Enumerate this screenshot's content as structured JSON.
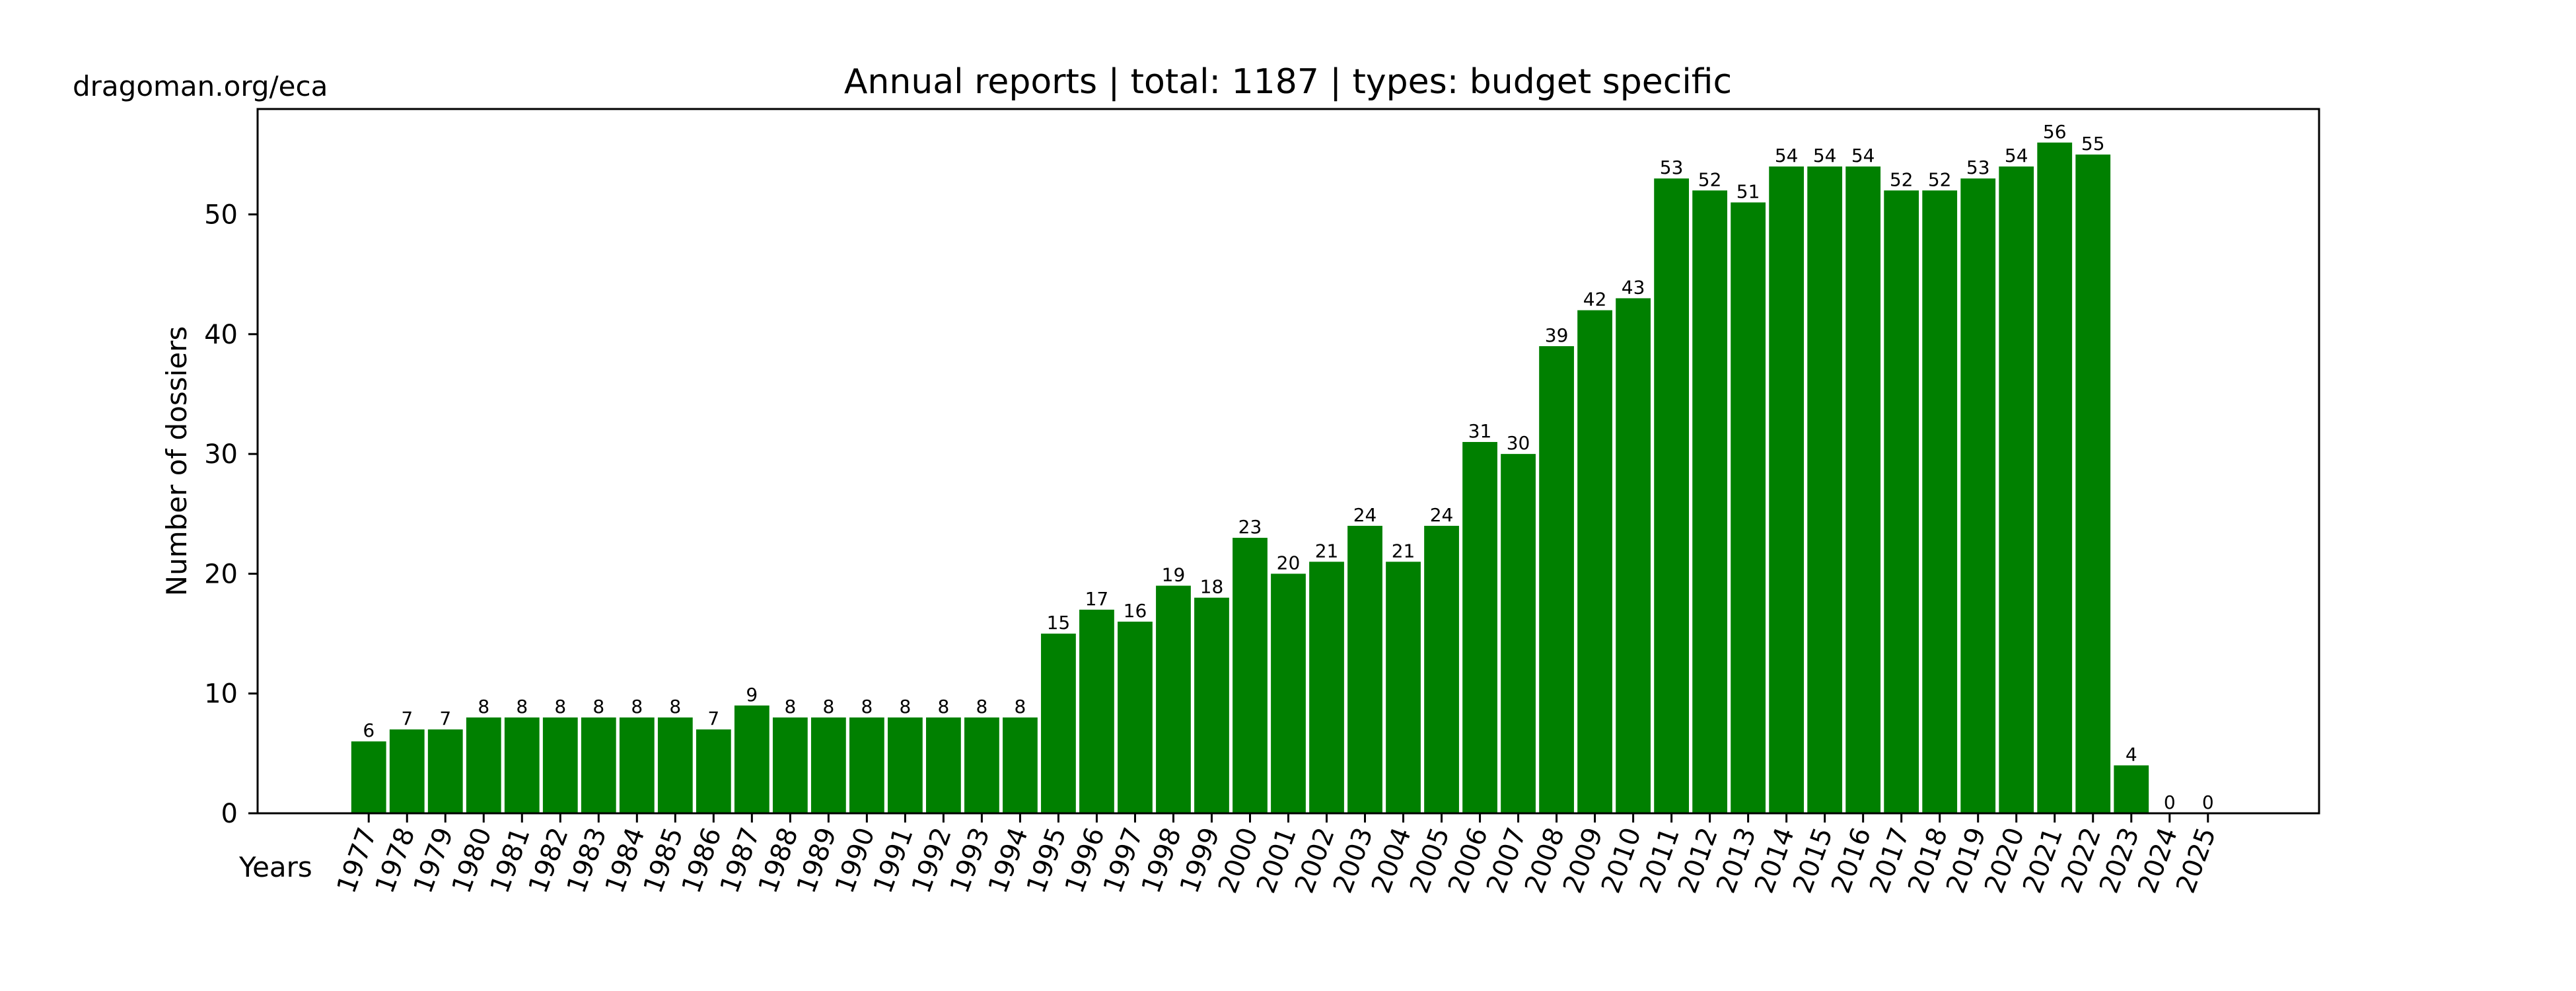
{
  "watermark": "dragoman.org/eca",
  "chart_data": {
    "type": "bar",
    "title": "Annual reports | total: 1187 | types: budget specific",
    "xlabel": "Years",
    "ylabel": "Number of dossiers",
    "categories": [
      "1977",
      "1978",
      "1979",
      "1980",
      "1981",
      "1982",
      "1983",
      "1984",
      "1985",
      "1986",
      "1987",
      "1988",
      "1989",
      "1990",
      "1991",
      "1992",
      "1993",
      "1994",
      "1995",
      "1996",
      "1997",
      "1998",
      "1999",
      "2000",
      "2001",
      "2002",
      "2003",
      "2004",
      "2005",
      "2006",
      "2007",
      "2008",
      "2009",
      "2010",
      "2011",
      "2012",
      "2013",
      "2014",
      "2015",
      "2016",
      "2017",
      "2018",
      "2019",
      "2020",
      "2021",
      "2022",
      "2023",
      "2024",
      "2025"
    ],
    "values": [
      6,
      7,
      7,
      8,
      8,
      8,
      8,
      8,
      8,
      7,
      9,
      8,
      8,
      8,
      8,
      8,
      8,
      8,
      15,
      17,
      16,
      19,
      18,
      23,
      20,
      21,
      24,
      21,
      24,
      31,
      30,
      39,
      42,
      43,
      53,
      52,
      51,
      54,
      54,
      54,
      52,
      52,
      53,
      54,
      56,
      55,
      4,
      0,
      0
    ],
    "data_labels": [
      "6",
      "7",
      "7",
      "8",
      "8",
      "8",
      "8",
      "8",
      "8",
      "7",
      "9",
      "8",
      "8",
      "8",
      "8",
      "8",
      "8",
      "8",
      "15",
      "17",
      "16",
      "19",
      "18",
      "23",
      "20",
      "21",
      "24",
      "21",
      "24",
      "31",
      "30",
      "39",
      "42",
      "43",
      "53",
      "52",
      "51",
      "54",
      "54",
      "54",
      "52",
      "52",
      "53",
      "54",
      "56",
      "55",
      "4",
      "0",
      "0"
    ],
    "ylim": [
      0,
      58.8
    ],
    "xlim": [
      1974.1,
      2027.9
    ],
    "yticks": [
      0,
      10,
      20,
      30,
      40,
      50
    ],
    "ytick_labels": [
      "0",
      "10",
      "20",
      "30",
      "40",
      "50"
    ],
    "xtick_rotation_deg": 70,
    "grid": false,
    "legend": "none",
    "bar_color": "#008000",
    "total": 1187
  }
}
